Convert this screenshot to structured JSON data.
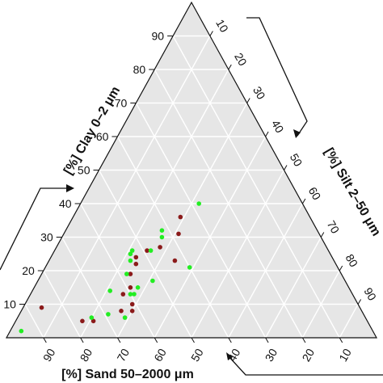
{
  "chart_data": {
    "type": "scatter",
    "subtype": "ternary",
    "background_color": "#e6e6e6",
    "grid": true,
    "grid_color": "#ffffff",
    "axes": {
      "clay": {
        "label": "[%] Clay 0–2 μm",
        "ticks": [
          "10",
          "20",
          "30",
          "40",
          "50",
          "60",
          "70",
          "80",
          "90"
        ]
      },
      "silt": {
        "label": "[%] Silt 2–50 μm",
        "ticks": [
          "10",
          "20",
          "30",
          "40",
          "50",
          "60",
          "70",
          "80",
          "90"
        ]
      },
      "sand": {
        "label": "[%] Sand 50–2000 μm",
        "ticks": [
          "90",
          "80",
          "70",
          "60",
          "50",
          "40",
          "30",
          "20",
          "10"
        ]
      }
    },
    "series": [
      {
        "color": "#8b1a1a",
        "points": [
          {
            "clay": 9,
            "silt": 5,
            "sand": 86
          },
          {
            "clay": 5,
            "silt": 18,
            "sand": 77
          },
          {
            "clay": 5,
            "silt": 21,
            "sand": 74
          },
          {
            "clay": 8,
            "silt": 27,
            "sand": 65
          },
          {
            "clay": 8,
            "silt": 30,
            "sand": 62
          },
          {
            "clay": 10,
            "silt": 29,
            "sand": 61
          },
          {
            "clay": 13,
            "silt": 25,
            "sand": 62
          },
          {
            "clay": 15,
            "silt": 26,
            "sand": 59
          },
          {
            "clay": 19,
            "silt": 24,
            "sand": 57
          },
          {
            "clay": 22,
            "silt": 24,
            "sand": 54
          },
          {
            "clay": 24,
            "silt": 23,
            "sand": 53
          },
          {
            "clay": 26,
            "silt": 25,
            "sand": 49
          },
          {
            "clay": 27,
            "silt": 28,
            "sand": 45
          },
          {
            "clay": 23,
            "silt": 34,
            "sand": 43
          },
          {
            "clay": 31,
            "silt": 31,
            "sand": 38
          },
          {
            "clay": 36,
            "silt": 29,
            "sand": 35
          }
        ]
      },
      {
        "color": "#22ee22",
        "points": [
          {
            "clay": 2,
            "silt": 3,
            "sand": 95
          },
          {
            "clay": 6,
            "silt": 20,
            "sand": 74
          },
          {
            "clay": 7,
            "silt": 24,
            "sand": 69
          },
          {
            "clay": 6,
            "silt": 29,
            "sand": 65
          },
          {
            "clay": 14,
            "silt": 21,
            "sand": 65
          },
          {
            "clay": 13,
            "silt": 27,
            "sand": 60
          },
          {
            "clay": 13,
            "silt": 28,
            "sand": 59
          },
          {
            "clay": 15,
            "silt": 28,
            "sand": 57
          },
          {
            "clay": 17,
            "silt": 31,
            "sand": 52
          },
          {
            "clay": 19,
            "silt": 23,
            "sand": 58
          },
          {
            "clay": 23,
            "silt": 22,
            "sand": 55
          },
          {
            "clay": 25,
            "silt": 21,
            "sand": 54
          },
          {
            "clay": 26,
            "silt": 21,
            "sand": 53
          },
          {
            "clay": 26,
            "silt": 26,
            "sand": 48
          },
          {
            "clay": 30,
            "silt": 27,
            "sand": 43
          },
          {
            "clay": 32,
            "silt": 26,
            "sand": 42
          },
          {
            "clay": 21,
            "silt": 39,
            "sand": 40
          },
          {
            "clay": 40,
            "silt": 32,
            "sand": 28
          }
        ]
      }
    ]
  }
}
